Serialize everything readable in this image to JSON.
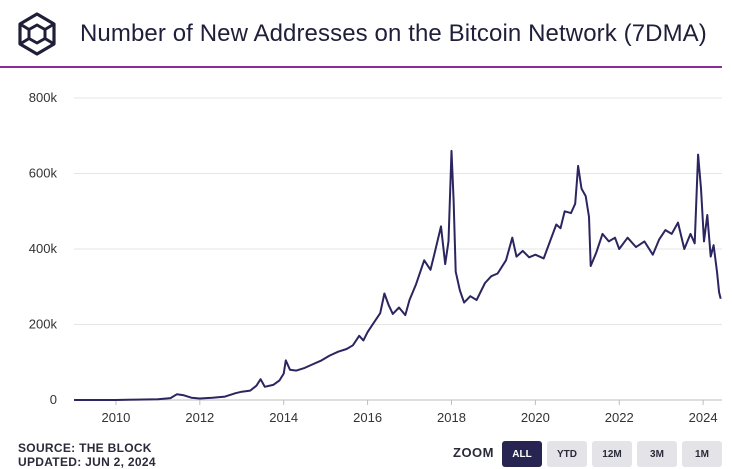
{
  "title": "Number of New Addresses on the Bitcoin Network (7DMA)",
  "footer": {
    "source": "SOURCE: THE BLOCK",
    "updated": "UPDATED: JUN 2, 2024"
  },
  "zoom": {
    "label": "ZOOM",
    "buttons": [
      "ALL",
      "YTD",
      "12M",
      "3M",
      "1M"
    ],
    "active": "ALL"
  },
  "colors": {
    "line": "#2b2560",
    "accent_rule": "#8b2b9b",
    "grid": "#e6e6e6",
    "button_active": "#272452",
    "button": "#e4e4e8"
  },
  "chart_data": {
    "type": "line",
    "title": "Number of New Addresses on the Bitcoin Network (7DMA)",
    "xlabel": "",
    "ylabel": "",
    "xlim": [
      2009.0,
      2024.45
    ],
    "ylim": [
      0,
      800000
    ],
    "x_ticks": [
      2010,
      2012,
      2014,
      2016,
      2018,
      2020,
      2022,
      2024
    ],
    "x_tick_labels": [
      "2010",
      "2012",
      "2014",
      "2016",
      "2018",
      "2020",
      "2022",
      "2024"
    ],
    "y_ticks": [
      0,
      200000,
      400000,
      600000,
      800000
    ],
    "y_tick_labels": [
      "0",
      "200k",
      "400k",
      "600k",
      "800k"
    ],
    "grid": true,
    "legend": "none",
    "series": [
      {
        "values": [
          [
            2009.0,
            0
          ],
          [
            2009.5,
            0
          ],
          [
            2010.0,
            0
          ],
          [
            2010.5,
            1000
          ],
          [
            2011.0,
            2000
          ],
          [
            2011.3,
            5000
          ],
          [
            2011.45,
            15000
          ],
          [
            2011.6,
            13000
          ],
          [
            2011.8,
            6000
          ],
          [
            2012.0,
            4000
          ],
          [
            2012.3,
            6000
          ],
          [
            2012.6,
            9000
          ],
          [
            2012.85,
            18000
          ],
          [
            2013.0,
            22000
          ],
          [
            2013.2,
            25000
          ],
          [
            2013.35,
            38000
          ],
          [
            2013.45,
            55000
          ],
          [
            2013.55,
            35000
          ],
          [
            2013.75,
            40000
          ],
          [
            2013.9,
            52000
          ],
          [
            2014.0,
            70000
          ],
          [
            2014.05,
            105000
          ],
          [
            2014.15,
            80000
          ],
          [
            2014.3,
            78000
          ],
          [
            2014.5,
            85000
          ],
          [
            2014.7,
            95000
          ],
          [
            2014.9,
            105000
          ],
          [
            2015.1,
            118000
          ],
          [
            2015.3,
            128000
          ],
          [
            2015.5,
            135000
          ],
          [
            2015.65,
            145000
          ],
          [
            2015.8,
            170000
          ],
          [
            2015.9,
            158000
          ],
          [
            2016.0,
            180000
          ],
          [
            2016.15,
            205000
          ],
          [
            2016.3,
            230000
          ],
          [
            2016.4,
            282000
          ],
          [
            2016.5,
            252000
          ],
          [
            2016.6,
            228000
          ],
          [
            2016.75,
            245000
          ],
          [
            2016.9,
            225000
          ],
          [
            2017.0,
            265000
          ],
          [
            2017.15,
            305000
          ],
          [
            2017.35,
            370000
          ],
          [
            2017.5,
            345000
          ],
          [
            2017.6,
            390000
          ],
          [
            2017.75,
            460000
          ],
          [
            2017.85,
            360000
          ],
          [
            2017.93,
            420000
          ],
          [
            2018.0,
            660000
          ],
          [
            2018.05,
            530000
          ],
          [
            2018.1,
            340000
          ],
          [
            2018.2,
            290000
          ],
          [
            2018.3,
            258000
          ],
          [
            2018.45,
            275000
          ],
          [
            2018.6,
            265000
          ],
          [
            2018.8,
            310000
          ],
          [
            2018.95,
            328000
          ],
          [
            2019.1,
            335000
          ],
          [
            2019.3,
            370000
          ],
          [
            2019.45,
            430000
          ],
          [
            2019.55,
            380000
          ],
          [
            2019.7,
            395000
          ],
          [
            2019.85,
            378000
          ],
          [
            2020.0,
            385000
          ],
          [
            2020.2,
            375000
          ],
          [
            2020.35,
            420000
          ],
          [
            2020.5,
            465000
          ],
          [
            2020.6,
            455000
          ],
          [
            2020.7,
            500000
          ],
          [
            2020.85,
            495000
          ],
          [
            2020.95,
            520000
          ],
          [
            2021.02,
            620000
          ],
          [
            2021.1,
            560000
          ],
          [
            2021.2,
            540000
          ],
          [
            2021.28,
            485000
          ],
          [
            2021.32,
            355000
          ],
          [
            2021.45,
            390000
          ],
          [
            2021.6,
            440000
          ],
          [
            2021.75,
            420000
          ],
          [
            2021.9,
            430000
          ],
          [
            2022.0,
            400000
          ],
          [
            2022.2,
            430000
          ],
          [
            2022.4,
            405000
          ],
          [
            2022.6,
            420000
          ],
          [
            2022.8,
            385000
          ],
          [
            2022.95,
            425000
          ],
          [
            2023.1,
            450000
          ],
          [
            2023.25,
            440000
          ],
          [
            2023.4,
            470000
          ],
          [
            2023.55,
            400000
          ],
          [
            2023.7,
            440000
          ],
          [
            2023.8,
            415000
          ],
          [
            2023.88,
            650000
          ],
          [
            2023.95,
            560000
          ],
          [
            2024.02,
            420000
          ],
          [
            2024.1,
            490000
          ],
          [
            2024.18,
            380000
          ],
          [
            2024.25,
            410000
          ],
          [
            2024.33,
            340000
          ],
          [
            2024.38,
            285000
          ],
          [
            2024.42,
            268000
          ]
        ]
      }
    ]
  }
}
